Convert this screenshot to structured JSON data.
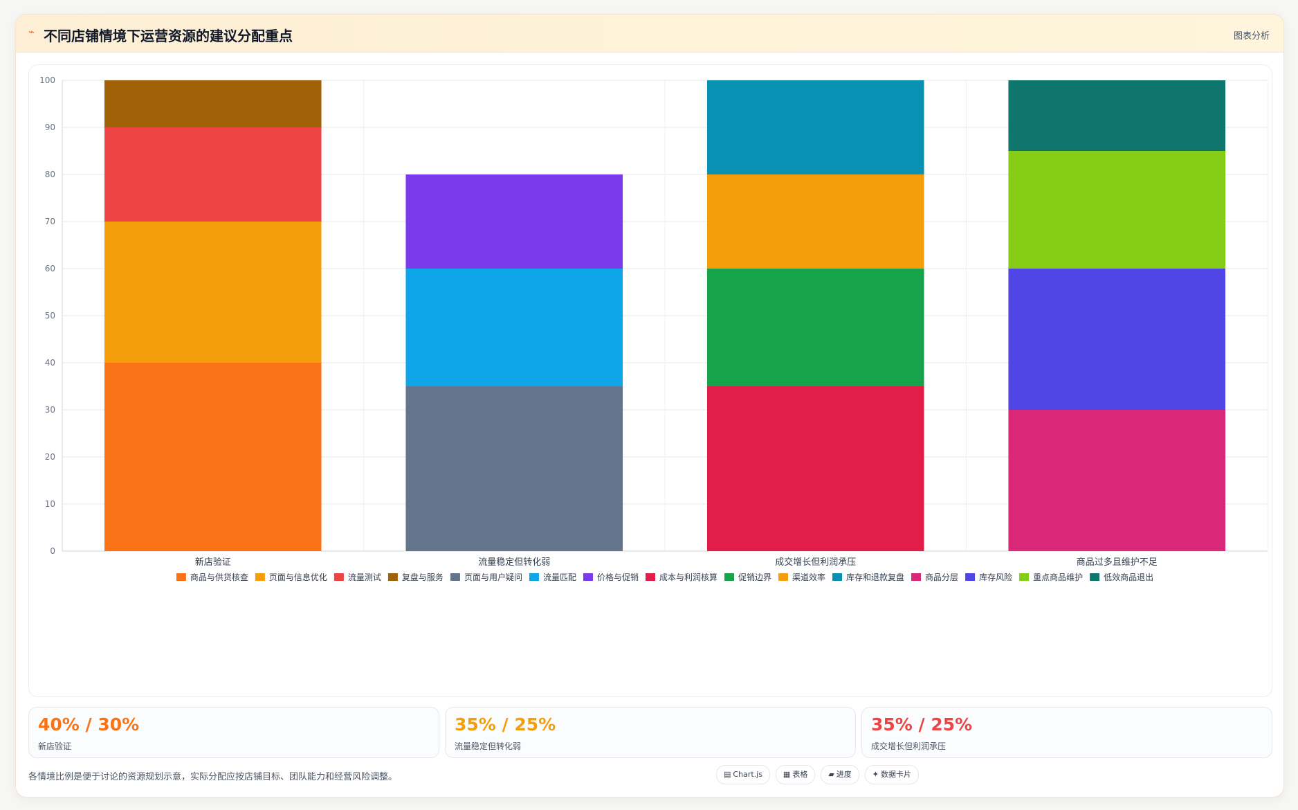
{
  "header": {
    "icon": "line-chart-icon",
    "title": "不同店铺情境下运营资源的建议分配重点",
    "badge": "图表分析"
  },
  "chart_data": {
    "type": "bar",
    "stacked": true,
    "categories": [
      "新店验证",
      "流量稳定但转化弱",
      "成交增长但利润承压",
      "商品过多且维护不足"
    ],
    "ylim": [
      0,
      100
    ],
    "yticks": [
      0,
      10,
      20,
      30,
      40,
      50,
      60,
      70,
      80,
      90,
      100
    ],
    "grid": true,
    "legend_position": "bottom",
    "series": [
      {
        "name": "商品与供货核查",
        "color": "#f97316",
        "values": [
          40,
          0,
          0,
          0
        ]
      },
      {
        "name": "页面与信息优化",
        "color": "#f59e0b",
        "values": [
          30,
          0,
          0,
          0
        ]
      },
      {
        "name": "流量测试",
        "color": "#ef4444",
        "values": [
          20,
          0,
          0,
          0
        ]
      },
      {
        "name": "复盘与服务",
        "color": "#a16207",
        "values": [
          10,
          0,
          0,
          0
        ]
      },
      {
        "name": "页面与用户疑问",
        "color": "#64748b",
        "values": [
          0,
          35,
          0,
          0
        ]
      },
      {
        "name": "流量匹配",
        "color": "#0ea5e9",
        "values": [
          0,
          25,
          0,
          0
        ]
      },
      {
        "name": "价格与促销",
        "color": "#7c3aed",
        "values": [
          0,
          20,
          0,
          0
        ]
      },
      {
        "name": "成本与利润核算",
        "color": "#e11d48",
        "values": [
          0,
          0,
          35,
          0
        ]
      },
      {
        "name": "促销边界",
        "color": "#16a34a",
        "values": [
          0,
          0,
          25,
          0
        ]
      },
      {
        "name": "渠道效率",
        "color": "#f59e0b",
        "values": [
          0,
          0,
          20,
          0
        ]
      },
      {
        "name": "库存和退款复盘",
        "color": "#0891b2",
        "values": [
          0,
          0,
          20,
          0
        ]
      },
      {
        "name": "商品分层",
        "color": "#db2777",
        "values": [
          0,
          0,
          0,
          30
        ]
      },
      {
        "name": "库存风险",
        "color": "#4f46e5",
        "values": [
          0,
          0,
          0,
          30
        ]
      },
      {
        "name": "重点商品维护",
        "color": "#84cc16",
        "values": [
          0,
          0,
          0,
          25
        ]
      },
      {
        "name": "低效商品退出",
        "color": "#0f766e",
        "values": [
          0,
          0,
          0,
          15
        ]
      }
    ]
  },
  "stats": [
    {
      "value": "40% / 30%",
      "label": "新店验证",
      "color": "#f97316"
    },
    {
      "value": "35% / 25%",
      "label": "流量稳定但转化弱",
      "color": "#f59e0b"
    },
    {
      "value": "35% / 25%",
      "label": "成交增长但利润承压",
      "color": "#ef4444"
    }
  ],
  "footnote": "各情境比例是便于讨论的资源规划示意，实际分配应按店铺目标、团队能力和经营风险调整。",
  "tags": [
    {
      "icon": "chart-icon",
      "glyph": "▤",
      "label": "Chart.js"
    },
    {
      "icon": "table-icon",
      "glyph": "▦",
      "label": "表格"
    },
    {
      "icon": "progress-icon",
      "glyph": "▰",
      "label": "进度"
    },
    {
      "icon": "sparkle-icon",
      "glyph": "✦",
      "label": "数据卡片"
    }
  ]
}
